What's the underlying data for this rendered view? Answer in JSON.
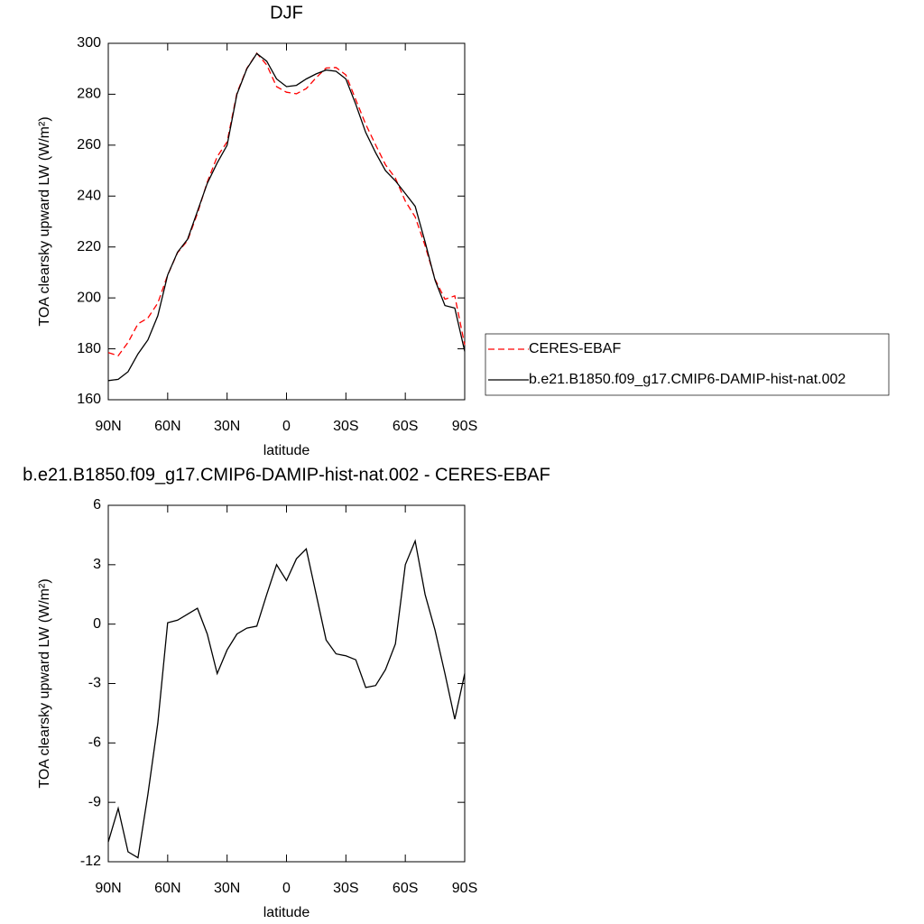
{
  "chart_data": [
    {
      "type": "line",
      "title": "DJF",
      "x_label": "latitude",
      "y_label": "TOA clearsky upward LW (W/m²)",
      "x": [
        90,
        85,
        80,
        75,
        70,
        65,
        60,
        55,
        50,
        45,
        40,
        35,
        30,
        25,
        20,
        15,
        10,
        5,
        0,
        -5,
        -10,
        -15,
        -20,
        -25,
        -30,
        -35,
        -40,
        -45,
        -50,
        -55,
        -60,
        -65,
        -70,
        -75,
        -80,
        -85,
        -90
      ],
      "xlim": [
        90,
        -90
      ],
      "xticks": [
        {
          "value": 90,
          "label": "90N"
        },
        {
          "value": 60,
          "label": "60N"
        },
        {
          "value": 30,
          "label": "30N"
        },
        0,
        {
          "value": -30,
          "label": "30S"
        },
        {
          "value": -60,
          "label": "60S"
        },
        {
          "value": -90,
          "label": "90S"
        }
      ],
      "ylim": [
        160,
        300
      ],
      "yticks": [
        160,
        180,
        200,
        220,
        240,
        260,
        280,
        300
      ],
      "legend": "right",
      "series": [
        {
          "name": "CERES-EBAF",
          "color": "#ff0000",
          "dashed": true,
          "values": [
            178.5,
            177.3,
            182.5,
            189.8,
            192.1,
            198,
            209,
            217.8,
            222.5,
            233.2,
            245.5,
            255.5,
            261.3,
            280.5,
            290.2,
            296.1,
            291.5,
            283,
            280.8,
            280.2,
            282.2,
            286.5,
            290.3,
            290.5,
            287.6,
            277.8,
            268.2,
            260.1,
            252.3,
            247,
            238,
            231.8,
            220.5,
            207.3,
            199.5,
            200.8,
            181.5
          ]
        },
        {
          "name": "b.e21.B1850.f09_g17.CMIP6-DAMIP-hist-nat.002",
          "color": "#000000",
          "dashed": false,
          "values": [
            167.5,
            168,
            171,
            178,
            183.5,
            193,
            209,
            218,
            223,
            234,
            245,
            253,
            260,
            280,
            290,
            296,
            293,
            286,
            283,
            283.5,
            286,
            288,
            289.5,
            289,
            286,
            276,
            265,
            257,
            250,
            246,
            241,
            236,
            222,
            207,
            197,
            196,
            179
          ]
        }
      ]
    },
    {
      "type": "line",
      "title": "b.e21.B1850.f09_g17.CMIP6-DAMIP-hist-nat.002 - CERES-EBAF",
      "x_label": "latitude",
      "y_label": "TOA clearsky upward LW (W/m²)",
      "x": [
        90,
        85,
        80,
        75,
        70,
        65,
        60,
        55,
        50,
        45,
        40,
        35,
        30,
        25,
        20,
        15,
        10,
        5,
        0,
        -5,
        -10,
        -15,
        -20,
        -25,
        -30,
        -35,
        -40,
        -45,
        -50,
        -55,
        -60,
        -65,
        -70,
        -75,
        -80,
        -85,
        -90
      ],
      "xlim": [
        90,
        -90
      ],
      "xticks": [
        {
          "value": 90,
          "label": "90N"
        },
        {
          "value": 60,
          "label": "60N"
        },
        {
          "value": 30,
          "label": "30N"
        },
        0,
        {
          "value": -30,
          "label": "30S"
        },
        {
          "value": -60,
          "label": "60S"
        },
        {
          "value": -90,
          "label": "90S"
        }
      ],
      "ylim": [
        -12,
        6
      ],
      "yticks": [
        -12,
        -9,
        -6,
        -3,
        0,
        3,
        6
      ],
      "series": [
        {
          "color": "#000000",
          "dashed": false,
          "values": [
            -11,
            -9.3,
            -11.5,
            -11.8,
            -8.6,
            -5,
            0.07,
            0.2,
            0.5,
            0.8,
            -0.5,
            -2.5,
            -1.3,
            -0.5,
            -0.2,
            -0.1,
            1.5,
            3.0,
            2.2,
            3.3,
            3.8,
            1.5,
            -0.8,
            -1.5,
            -1.6,
            -1.8,
            -3.2,
            -3.1,
            -2.3,
            -1.0,
            3.0,
            4.2,
            1.5,
            -0.3,
            -2.5,
            -4.8,
            -2.5
          ]
        }
      ]
    }
  ]
}
